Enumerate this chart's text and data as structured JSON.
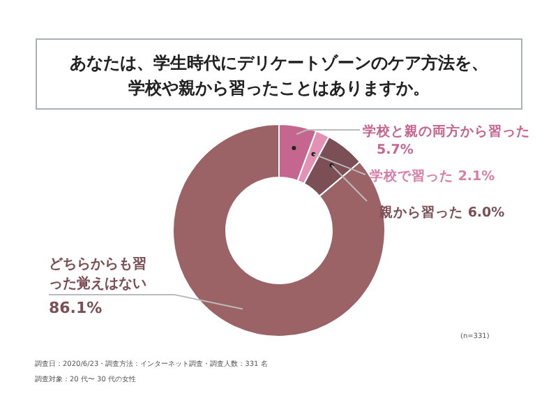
{
  "chart_data": {
    "type": "donut",
    "title": "あなたは、学生時代にデリケートゾーンのケア方法を、学校や親から習ったことはありますか。",
    "categories": [
      "学校と親の両方から習った",
      "学校で習った",
      "親から習った",
      "どちらからも習った覚えはない"
    ],
    "values": [
      5.7,
      2.1,
      6.0,
      86.1
    ],
    "colors": [
      "#c4668f",
      "#e391b5",
      "#7b4f55",
      "#9c6366"
    ],
    "value_labels": [
      "5.7%",
      "2.1%",
      "6.0%",
      "86.1%"
    ],
    "annotations": [
      "(n=331)",
      "調査日：2020/6/23・調査方法：インターネット調査・調査人数：331 名",
      "調査対象：20 代〜 30 代の女性"
    ]
  }
}
